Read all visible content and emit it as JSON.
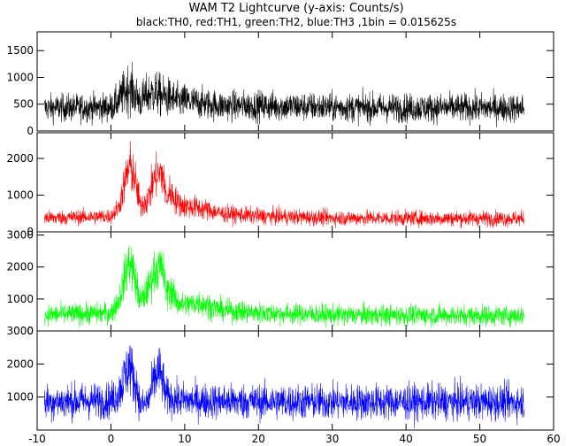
{
  "title": "WAM T2 Lightcurve (y-axis: Counts/s)",
  "subtitle": "black:TH0, red:TH1, green:TH2, blue:TH3 ,1bin = 0.015625s",
  "colors": {
    "TH0": "#000000",
    "TH1": "#ff0000",
    "TH2": "#00ff00",
    "TH3": "#0000ff"
  },
  "chart_data": {
    "type": "line",
    "xlim": [
      -10,
      60
    ],
    "x_ticks": [
      "-10",
      "0",
      "10",
      "20",
      "30",
      "40",
      "50",
      "60"
    ],
    "x_range": [
      -9,
      56
    ],
    "series": [
      {
        "name": "TH0",
        "ylim": [
          0,
          1850
        ],
        "y_ticks": [
          "0",
          "500",
          "1000",
          "1500"
        ],
        "shape": {
          "t": [
            -9,
            0,
            1,
            2,
            2.5,
            3,
            4,
            5,
            6,
            7,
            8,
            9,
            10,
            12,
            15,
            20,
            30,
            40,
            56
          ],
          "mean": [
            430,
            440,
            560,
            760,
            820,
            720,
            560,
            680,
            720,
            640,
            620,
            560,
            560,
            520,
            470,
            470,
            440,
            430,
            430
          ],
          "spread": [
            180,
            190,
            230,
            320,
            340,
            300,
            240,
            280,
            300,
            270,
            260,
            230,
            230,
            210,
            200,
            200,
            190,
            190,
            190
          ]
        }
      },
      {
        "name": "TH1",
        "ylim": [
          0,
          2700
        ],
        "y_ticks": [
          "0",
          "1000",
          "2000"
        ],
        "shape": {
          "t": [
            -9,
            0,
            1,
            2,
            2.5,
            3,
            3.5,
            4,
            5,
            6,
            7,
            7.5,
            8,
            9,
            10,
            12,
            15,
            20,
            30,
            56
          ],
          "mean": [
            380,
            420,
            650,
            1400,
            1800,
            1600,
            1200,
            700,
            900,
            1500,
            1600,
            900,
            1100,
            800,
            700,
            650,
            500,
            430,
            380,
            360
          ],
          "spread": [
            140,
            150,
            200,
            420,
            500,
            450,
            380,
            250,
            300,
            420,
            450,
            300,
            330,
            260,
            240,
            220,
            170,
            160,
            150,
            150
          ]
        }
      },
      {
        "name": "TH2",
        "ylim": [
          0,
          3100
        ],
        "y_ticks": [
          "0",
          "1000",
          "2000",
          "3000"
        ],
        "shape": {
          "t": [
            -9,
            0,
            1,
            2,
            2.5,
            3,
            3.5,
            4,
            5,
            6,
            7,
            7.5,
            8,
            9,
            10,
            12,
            15,
            20,
            30,
            56
          ],
          "mean": [
            500,
            560,
            900,
            1800,
            2200,
            1900,
            1400,
            900,
            1300,
            1900,
            2000,
            1200,
            1300,
            900,
            800,
            900,
            650,
            560,
            500,
            480
          ],
          "spread": [
            230,
            240,
            300,
            500,
            550,
            520,
            450,
            320,
            380,
            500,
            520,
            380,
            400,
            300,
            280,
            300,
            250,
            240,
            230,
            230
          ]
        }
      },
      {
        "name": "TH3",
        "ylim": [
          0,
          3000
        ],
        "y_ticks": [
          "1000",
          "2000",
          "3000"
        ],
        "shape": {
          "t": [
            -9,
            0,
            1,
            2,
            2.5,
            3,
            3.5,
            4,
            5,
            6,
            6.5,
            7,
            7.5,
            8,
            9,
            10,
            12,
            20,
            30,
            56
          ],
          "mean": [
            850,
            900,
            1100,
            1700,
            2000,
            1600,
            1300,
            700,
            850,
            1600,
            1800,
            1500,
            1000,
            1000,
            900,
            900,
            880,
            860,
            850,
            850
          ],
          "spread": [
            380,
            390,
            430,
            600,
            650,
            560,
            500,
            330,
            380,
            560,
            600,
            520,
            420,
            410,
            380,
            380,
            380,
            380,
            380,
            380
          ]
        }
      }
    ]
  }
}
